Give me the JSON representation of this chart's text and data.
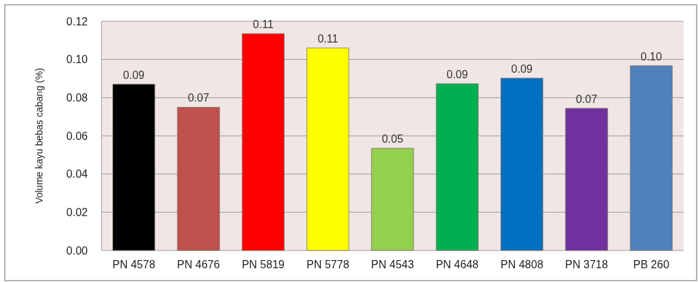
{
  "chart_data": {
    "type": "bar",
    "ylabel": "Volume kayu bebas cabang (%)",
    "categories": [
      "PN 4578",
      "PN 4676",
      "PN 5819",
      "PN 5778",
      "PN 4543",
      "PN 4648",
      "PN 4808",
      "PN 3718",
      "PB 260"
    ],
    "values": [
      0.087,
      0.075,
      0.1135,
      0.106,
      0.0535,
      0.0873,
      0.0902,
      0.0744,
      0.0967
    ],
    "value_labels": [
      "0.09",
      "0.07",
      "0.11",
      "0.11",
      "0.05",
      "0.09",
      "0.09",
      "0.07",
      "0.10"
    ],
    "colors": [
      "#000000",
      "#c0504d",
      "#ff0000",
      "#ffff00",
      "#92d050",
      "#00b050",
      "#0070c0",
      "#7030a0",
      "#4f81bd"
    ],
    "ylim": [
      0,
      0.12
    ],
    "yticks": [
      {
        "value": 0,
        "label": "0.00"
      },
      {
        "value": 0.02,
        "label": "0.02"
      },
      {
        "value": 0.04,
        "label": "0.04"
      },
      {
        "value": 0.06,
        "label": "0.06"
      },
      {
        "value": 0.08,
        "label": "0.08"
      },
      {
        "value": 0.1,
        "label": "0.10"
      },
      {
        "value": 0.12,
        "label": "0.12"
      }
    ],
    "grid": "y"
  }
}
